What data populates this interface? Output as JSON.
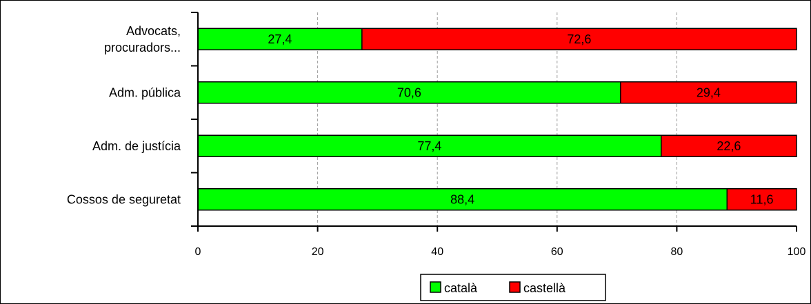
{
  "chart_data": {
    "type": "bar",
    "orientation": "horizontal",
    "stacked": true,
    "categories": [
      [
        "Advocats,",
        "procuradors..."
      ],
      [
        "Adm. pública"
      ],
      [
        "Adm. de justícia"
      ],
      [
        "Cossos de seguretat"
      ]
    ],
    "series": [
      {
        "name": "català",
        "values": [
          27.4,
          70.6,
          77.4,
          88.4
        ],
        "labels": [
          "27,4",
          "70,6",
          "77,4",
          "88,4"
        ],
        "color": "#00ff00"
      },
      {
        "name": "castellà",
        "values": [
          72.6,
          29.4,
          22.6,
          11.6
        ],
        "labels": [
          "72,6",
          "29,4",
          "22,6",
          "11,6"
        ],
        "color": "#ff0000"
      }
    ],
    "xlim": [
      0,
      100
    ],
    "xticks": [
      0,
      20,
      40,
      60,
      80,
      100
    ],
    "grid": "vertical-dashed",
    "legend": "bottom"
  }
}
